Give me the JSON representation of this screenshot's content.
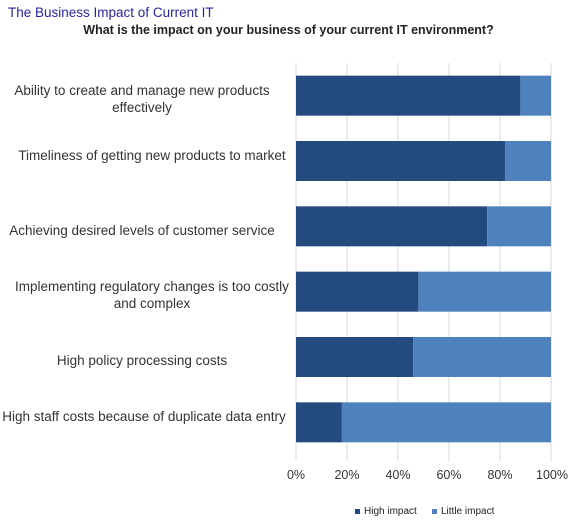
{
  "page": {
    "title": "The Business Impact of Current IT"
  },
  "colors": {
    "high": "#234b80",
    "little": "#4f81bd",
    "title": "#2626a8",
    "grid": "#d9d9d9"
  },
  "chart_data": {
    "type": "bar",
    "orientation": "horizontal",
    "stacked": "percent",
    "title": "What is the impact on your business of your current IT environment?",
    "categories": [
      "Ability to create and manage new products effectively",
      "Timeliness of getting new products to market",
      "Achieving desired levels of customer service",
      "Implementing regulatory changes is too costly and complex",
      "High policy processing costs",
      "High staff costs because of duplicate data entry"
    ],
    "series": [
      {
        "name": "High impact",
        "values": [
          88,
          82,
          75,
          48,
          46,
          18
        ]
      },
      {
        "name": "Little impact",
        "values": [
          12,
          18,
          25,
          52,
          54,
          82
        ]
      }
    ],
    "xlim": [
      0,
      100
    ],
    "xticks": [
      "0%",
      "20%",
      "40%",
      "60%",
      "80%",
      "100%"
    ],
    "grid": "vertical",
    "legend": "bottom"
  }
}
